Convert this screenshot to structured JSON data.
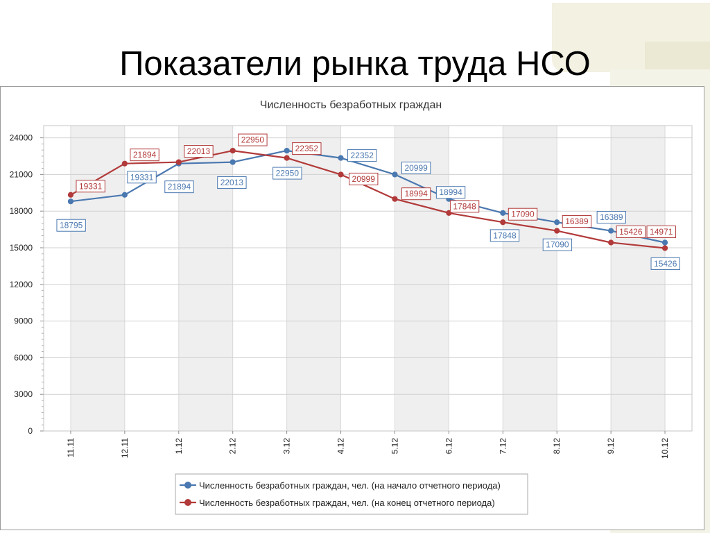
{
  "slide": {
    "title": "Показатели рынка труда НСО"
  },
  "chart_data": {
    "type": "line",
    "title": "Численность безработных граждан",
    "categories": [
      "11.11",
      "12.11",
      "1.12",
      "2.12",
      "3.12",
      "4.12",
      "5.12",
      "6.12",
      "7.12",
      "8.12",
      "9.12",
      "10.12"
    ],
    "yticks": [
      "0",
      "3000",
      "6000",
      "9000",
      "12000",
      "15000",
      "18000",
      "21000",
      "24000"
    ],
    "ylim": [
      0,
      25000
    ],
    "grid": true,
    "legend_position": "bottom",
    "series": [
      {
        "name": "Численность безработных граждан, чел. (на начало отчетного периода)",
        "color": "#4a78b0",
        "values": [
          18795,
          19331,
          21894,
          22013,
          22950,
          22352,
          20999,
          18994,
          17848,
          17090,
          16389,
          15426
        ],
        "labels": [
          "18795",
          "19331",
          "21894",
          "22013",
          "22950",
          "22352",
          "20999",
          "18994",
          "17848",
          "17090",
          "16389",
          "15426"
        ]
      },
      {
        "name": "Численность безработных граждан, чел. (на конец отчетного периода)",
        "color": "#b23a3a",
        "values": [
          19331,
          21894,
          22013,
          22950,
          22352,
          20999,
          18994,
          17848,
          17090,
          16389,
          15426,
          14971
        ],
        "labels": [
          "19331",
          "21894",
          "22013",
          "22950",
          "22352",
          "20999",
          "18994",
          "17848",
          "17090",
          "16389",
          "15426",
          "14971"
        ]
      }
    ]
  }
}
